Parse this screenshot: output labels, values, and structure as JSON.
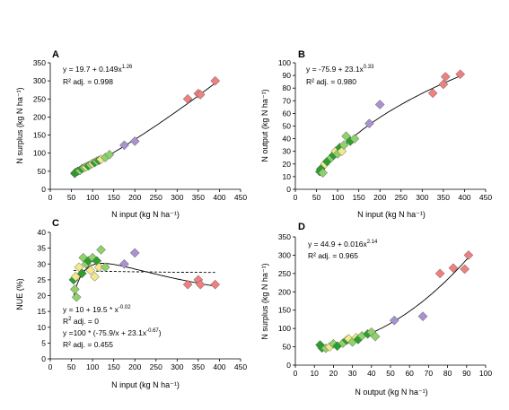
{
  "colors": {
    "dark_green": "#2ca02c",
    "light_green": "#8fd16a",
    "yellow": "#f3e98a",
    "purple": "#a892cf",
    "red": "#f08080",
    "outline": "#555555",
    "axis": "#000000"
  },
  "chart_data": [
    {
      "type": "scatter",
      "panel": "A",
      "xlabel": "N input (kg N ha⁻¹)",
      "ylabel": "N surplus (kg N ha⁻¹)",
      "xlim": [
        0,
        450
      ],
      "ylim": [
        0,
        350
      ],
      "xticks": [
        0,
        50,
        100,
        150,
        200,
        250,
        300,
        350,
        400,
        450
      ],
      "yticks": [
        0,
        50,
        100,
        150,
        200,
        250,
        300,
        350
      ],
      "annotations": [
        "y = 19.7 + 0.149x",
        "1.26",
        "R² adj. = 0.998"
      ],
      "fit": {
        "a": 19.7,
        "b": 0.149,
        "c": 1.26,
        "form": "power"
      },
      "points": [
        {
          "x": 58,
          "y": 44,
          "g": "dark_green"
        },
        {
          "x": 60,
          "y": 47,
          "g": "dark_green"
        },
        {
          "x": 65,
          "y": 50,
          "g": "dark_green"
        },
        {
          "x": 70,
          "y": 52,
          "g": "light_green"
        },
        {
          "x": 75,
          "y": 57,
          "g": "dark_green"
        },
        {
          "x": 80,
          "y": 60,
          "g": "light_green"
        },
        {
          "x": 85,
          "y": 62,
          "g": "yellow"
        },
        {
          "x": 90,
          "y": 65,
          "g": "dark_green"
        },
        {
          "x": 95,
          "y": 68,
          "g": "light_green"
        },
        {
          "x": 100,
          "y": 72,
          "g": "yellow"
        },
        {
          "x": 105,
          "y": 74,
          "g": "dark_green"
        },
        {
          "x": 110,
          "y": 78,
          "g": "light_green"
        },
        {
          "x": 115,
          "y": 80,
          "g": "dark_green"
        },
        {
          "x": 120,
          "y": 83,
          "g": "yellow"
        },
        {
          "x": 130,
          "y": 88,
          "g": "light_green"
        },
        {
          "x": 140,
          "y": 96,
          "g": "light_green"
        },
        {
          "x": 175,
          "y": 122,
          "g": "purple"
        },
        {
          "x": 200,
          "y": 133,
          "g": "purple"
        },
        {
          "x": 325,
          "y": 250,
          "g": "red"
        },
        {
          "x": 350,
          "y": 265,
          "g": "red"
        },
        {
          "x": 355,
          "y": 262,
          "g": "red"
        },
        {
          "x": 390,
          "y": 300,
          "g": "red"
        }
      ]
    },
    {
      "type": "scatter",
      "panel": "B",
      "xlabel": "N input (kg N ha⁻¹)",
      "ylabel": "N output (kg N ha⁻¹)",
      "xlim": [
        0,
        450
      ],
      "ylim": [
        0,
        100
      ],
      "xticks": [
        0,
        50,
        100,
        150,
        200,
        250,
        300,
        350,
        400,
        450
      ],
      "yticks": [
        0,
        10,
        20,
        30,
        40,
        50,
        60,
        70,
        80,
        90,
        100
      ],
      "annotations": [
        "y = -75.9 + 23.1x",
        "0.33",
        "R² adj. = 0.980"
      ],
      "fit": {
        "a": -75.9,
        "b": 23.1,
        "c": 0.33,
        "form": "power"
      },
      "points": [
        {
          "x": 58,
          "y": 14,
          "g": "dark_green"
        },
        {
          "x": 60,
          "y": 16,
          "g": "dark_green"
        },
        {
          "x": 65,
          "y": 13,
          "g": "light_green"
        },
        {
          "x": 70,
          "y": 20,
          "g": "yellow"
        },
        {
          "x": 75,
          "y": 22,
          "g": "dark_green"
        },
        {
          "x": 85,
          "y": 25,
          "g": "light_green"
        },
        {
          "x": 90,
          "y": 27,
          "g": "dark_green"
        },
        {
          "x": 95,
          "y": 30,
          "g": "yellow"
        },
        {
          "x": 100,
          "y": 28,
          "g": "light_green"
        },
        {
          "x": 105,
          "y": 33,
          "g": "dark_green"
        },
        {
          "x": 110,
          "y": 30,
          "g": "yellow"
        },
        {
          "x": 115,
          "y": 35,
          "g": "light_green"
        },
        {
          "x": 120,
          "y": 42,
          "g": "light_green"
        },
        {
          "x": 130,
          "y": 38,
          "g": "dark_green"
        },
        {
          "x": 140,
          "y": 40,
          "g": "light_green"
        },
        {
          "x": 175,
          "y": 52,
          "g": "purple"
        },
        {
          "x": 200,
          "y": 67,
          "g": "purple"
        },
        {
          "x": 325,
          "y": 76,
          "g": "red"
        },
        {
          "x": 350,
          "y": 83,
          "g": "red"
        },
        {
          "x": 355,
          "y": 89,
          "g": "red"
        },
        {
          "x": 390,
          "y": 91,
          "g": "red"
        }
      ]
    },
    {
      "type": "scatter",
      "panel": "C",
      "xlabel": "N input (kg N ha⁻¹)",
      "ylabel": "NUE (%)",
      "xlim": [
        0,
        450
      ],
      "ylim": [
        0,
        40
      ],
      "xticks": [
        0,
        50,
        100,
        150,
        200,
        250,
        300,
        350,
        400,
        450
      ],
      "yticks": [
        0,
        5,
        10,
        15,
        20,
        25,
        30,
        35,
        40
      ],
      "annotations": [
        "y = 10 + 19.5 * x",
        "-0.02",
        "R",
        "2",
        " adj. = 0",
        "y =100 * (-75.9/x + 23.1x",
        "-0.67",
        ")",
        "R² adj. = 0.455"
      ],
      "fit_dashed": {
        "a": 10,
        "b": 19.5,
        "c": -0.02
      },
      "fit_solid": {
        "a": -75.9,
        "b": 23.1,
        "c": -0.67
      },
      "points": [
        {
          "x": 55,
          "y": 25,
          "g": "dark_green"
        },
        {
          "x": 58,
          "y": 22,
          "g": "light_green"
        },
        {
          "x": 60,
          "y": 26,
          "g": "yellow"
        },
        {
          "x": 62,
          "y": 19.5,
          "g": "light_green"
        },
        {
          "x": 68,
          "y": 29,
          "g": "yellow"
        },
        {
          "x": 75,
          "y": 27,
          "g": "dark_green"
        },
        {
          "x": 78,
          "y": 32,
          "g": "light_green"
        },
        {
          "x": 85,
          "y": 30,
          "g": "light_green"
        },
        {
          "x": 90,
          "y": 31,
          "g": "dark_green"
        },
        {
          "x": 95,
          "y": 28,
          "g": "yellow"
        },
        {
          "x": 100,
          "y": 32,
          "g": "light_green"
        },
        {
          "x": 105,
          "y": 26,
          "g": "yellow"
        },
        {
          "x": 110,
          "y": 31,
          "g": "dark_green"
        },
        {
          "x": 115,
          "y": 29,
          "g": "yellow"
        },
        {
          "x": 120,
          "y": 34.5,
          "g": "light_green"
        },
        {
          "x": 130,
          "y": 29,
          "g": "light_green"
        },
        {
          "x": 175,
          "y": 30,
          "g": "purple"
        },
        {
          "x": 200,
          "y": 33.5,
          "g": "purple"
        },
        {
          "x": 325,
          "y": 23.5,
          "g": "red"
        },
        {
          "x": 350,
          "y": 25,
          "g": "red"
        },
        {
          "x": 355,
          "y": 23.5,
          "g": "red"
        },
        {
          "x": 390,
          "y": 23.5,
          "g": "red"
        }
      ]
    },
    {
      "type": "scatter",
      "panel": "D",
      "xlabel": "N output (kg N ha⁻¹)",
      "ylabel": "N surplus (kg N ha⁻¹)",
      "xlim": [
        0,
        100
      ],
      "ylim": [
        0,
        350
      ],
      "xticks": [
        0,
        10,
        20,
        30,
        40,
        50,
        60,
        70,
        80,
        90,
        100
      ],
      "yticks": [
        0,
        50,
        100,
        150,
        200,
        250,
        300,
        350
      ],
      "annotations": [
        "y = 44.9 + 0.016x",
        "2.14",
        "R² adj. = 0.965"
      ],
      "fit": {
        "a": 44.9,
        "b": 0.016,
        "c": 2.14,
        "form": "power"
      },
      "points": [
        {
          "x": 13,
          "y": 55,
          "g": "dark_green"
        },
        {
          "x": 14,
          "y": 47,
          "g": "dark_green"
        },
        {
          "x": 16,
          "y": 46,
          "g": "light_green"
        },
        {
          "x": 18,
          "y": 50,
          "g": "yellow"
        },
        {
          "x": 20,
          "y": 58,
          "g": "light_green"
        },
        {
          "x": 22,
          "y": 52,
          "g": "dark_green"
        },
        {
          "x": 25,
          "y": 60,
          "g": "light_green"
        },
        {
          "x": 27,
          "y": 68,
          "g": "dark_green"
        },
        {
          "x": 28,
          "y": 72,
          "g": "yellow"
        },
        {
          "x": 30,
          "y": 63,
          "g": "light_green"
        },
        {
          "x": 32,
          "y": 75,
          "g": "yellow"
        },
        {
          "x": 33,
          "y": 70,
          "g": "dark_green"
        },
        {
          "x": 35,
          "y": 80,
          "g": "light_green"
        },
        {
          "x": 38,
          "y": 85,
          "g": "dark_green"
        },
        {
          "x": 40,
          "y": 90,
          "g": "light_green"
        },
        {
          "x": 42,
          "y": 78,
          "g": "light_green"
        },
        {
          "x": 52,
          "y": 122,
          "g": "purple"
        },
        {
          "x": 67,
          "y": 133,
          "g": "purple"
        },
        {
          "x": 76,
          "y": 250,
          "g": "red"
        },
        {
          "x": 83,
          "y": 265,
          "g": "red"
        },
        {
          "x": 89,
          "y": 262,
          "g": "red"
        },
        {
          "x": 91,
          "y": 300,
          "g": "red"
        }
      ]
    }
  ]
}
